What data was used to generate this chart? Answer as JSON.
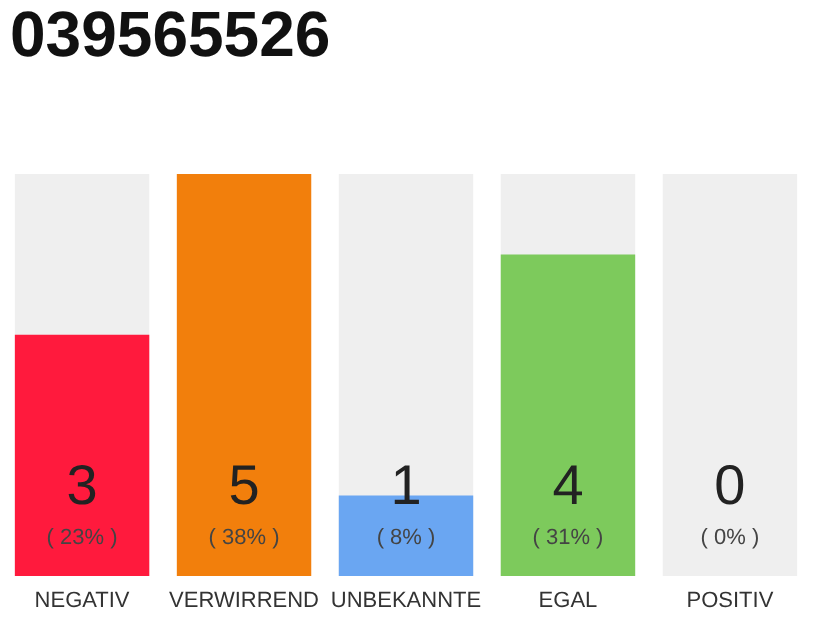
{
  "chart_data": {
    "type": "bar",
    "title": "039565526",
    "categories": [
      "NEGATIV",
      "VERWIRREND",
      "UNBEKANNTE",
      "EGAL",
      "POSITIV"
    ],
    "values": [
      3,
      5,
      1,
      4,
      0
    ],
    "colors": [
      "#ff1a3d",
      "#f27f0c",
      "#6aa6f2",
      "#7dca5c",
      "#d9d9d9"
    ],
    "data_labels": true,
    "annotations": [
      "( 23% )",
      "( 38% )",
      "( 8% )",
      "( 31% )",
      "( 0% )"
    ],
    "bands": [
      {
        "axis": "x",
        "from": "NEGATIV",
        "to": "NEGATIV",
        "color": "#efefef"
      },
      {
        "axis": "x",
        "from": "UNBEKANNTE",
        "to": "UNBEKANNTE",
        "color": "#efefef"
      },
      {
        "axis": "x",
        "from": "EGAL",
        "to": "EGAL",
        "color": "#efefef"
      },
      {
        "axis": "x",
        "from": "POSITIV",
        "to": "POSITIV",
        "color": "#efefef"
      }
    ],
    "grid": false
  }
}
